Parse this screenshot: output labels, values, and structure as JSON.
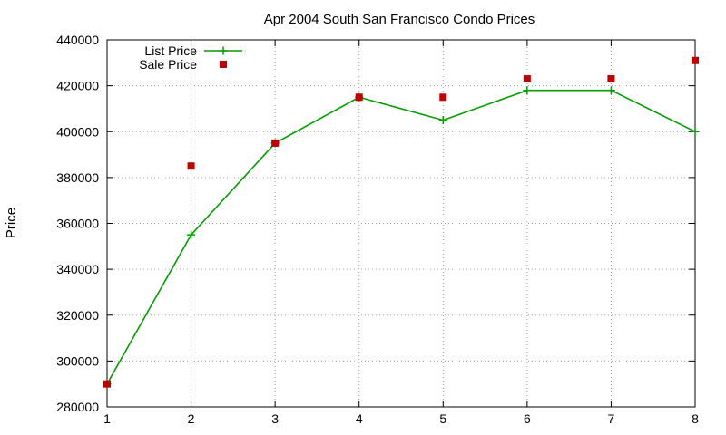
{
  "chart_data": {
    "type": "line",
    "title": "Apr 2004 South San Francisco Condo Prices",
    "xlabel": "",
    "ylabel": "Price",
    "xlim": [
      1,
      8
    ],
    "ylim": [
      280000,
      440000
    ],
    "x_ticks": [
      "1",
      "2",
      "3",
      "4",
      "5",
      "6",
      "7",
      "8"
    ],
    "y_ticks": [
      "280000",
      "300000",
      "320000",
      "340000",
      "360000",
      "380000",
      "400000",
      "420000",
      "440000"
    ],
    "grid": true,
    "legend_position": "top-left",
    "series": [
      {
        "name": "List Price",
        "style": "lines+points",
        "marker": "plus",
        "color": "#00a000",
        "x": [
          1,
          2,
          3,
          4,
          5,
          6,
          7,
          8
        ],
        "values": [
          290000,
          355000,
          395000,
          415000,
          405000,
          418000,
          418000,
          400000
        ]
      },
      {
        "name": "Sale Price",
        "style": "points",
        "marker": "square",
        "color": "#c00000",
        "x": [
          1,
          2,
          3,
          4,
          5,
          6,
          7,
          8
        ],
        "values": [
          290000,
          385000,
          395000,
          415000,
          415000,
          423000,
          423000,
          431000
        ]
      }
    ]
  }
}
